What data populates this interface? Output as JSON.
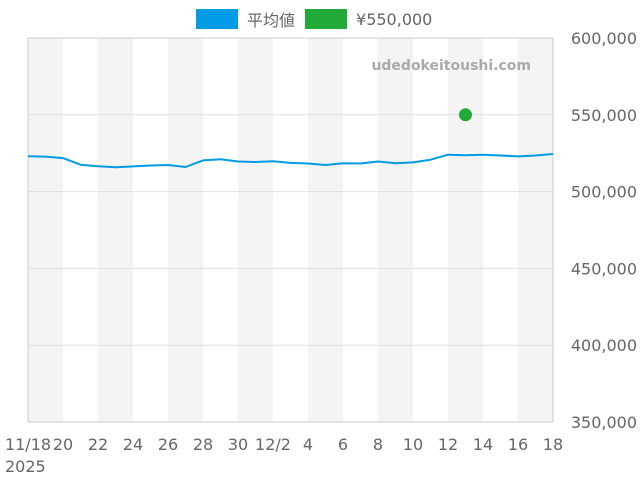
{
  "chart_data": {
    "type": "line",
    "watermark": "udedokeitoushi.com",
    "x_tick_labels": [
      "11/18",
      "20",
      "22",
      "24",
      "26",
      "28",
      "30",
      "12/2",
      "4",
      "6",
      "8",
      "10",
      "12",
      "14",
      "16",
      "18"
    ],
    "x_year_label": "2025",
    "dates": [
      "2025-11-18",
      "2025-11-19",
      "2025-11-20",
      "2025-11-21",
      "2025-11-22",
      "2025-11-23",
      "2025-11-24",
      "2025-11-25",
      "2025-11-26",
      "2025-11-27",
      "2025-11-28",
      "2025-11-29",
      "2025-11-30",
      "2025-12-01",
      "2025-12-02",
      "2025-12-03",
      "2025-12-04",
      "2025-12-05",
      "2025-12-06",
      "2025-12-07",
      "2025-12-08",
      "2025-12-09",
      "2025-12-10",
      "2025-12-11",
      "2025-12-12",
      "2025-12-13",
      "2025-12-14",
      "2025-12-15",
      "2025-12-16",
      "2025-12-17",
      "2025-12-18"
    ],
    "ylim": [
      350000,
      600000
    ],
    "y_tick_labels": [
      "350,000",
      "400,000",
      "450,000",
      "500,000",
      "550,000",
      "600,000"
    ],
    "y_axis_position": "right",
    "grid": true,
    "legend_position": "top-center",
    "series": [
      {
        "name": "平均値",
        "color": "#039BE5",
        "kind": "line",
        "values": [
          523000,
          522800,
          521800,
          517500,
          516500,
          515800,
          516400,
          517000,
          517300,
          516000,
          520300,
          521000,
          519600,
          519300,
          519800,
          518700,
          518300,
          517300,
          518500,
          518300,
          519600,
          518500,
          519000,
          520800,
          524000,
          523700,
          524000,
          523500,
          522900,
          523500,
          524500
        ]
      },
      {
        "name": "¥550,000",
        "color": "#22AA39",
        "kind": "point",
        "points": [
          {
            "x": "2025-12-13",
            "y": 550000
          }
        ]
      }
    ],
    "band_color": "#f4f4f4",
    "grid_color": "#e0e0e0",
    "axis_color": "#cccccc"
  }
}
